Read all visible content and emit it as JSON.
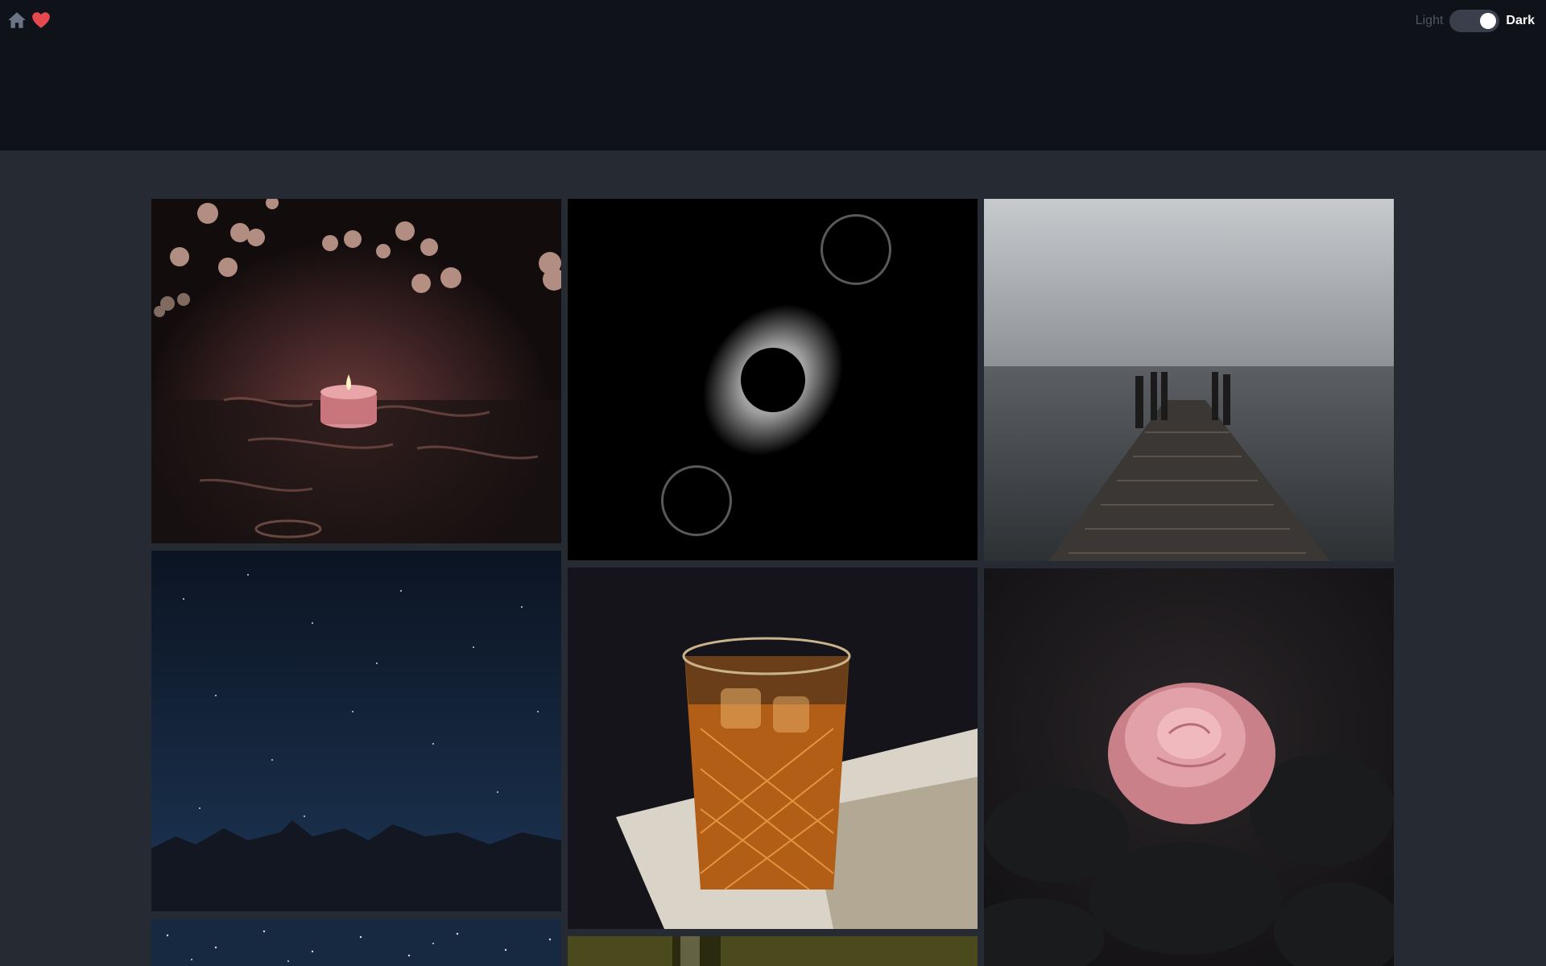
{
  "nav": {
    "home_icon": "home-icon",
    "favorites_icon": "heart-icon",
    "favorites_color": "#e5484d"
  },
  "theme": {
    "light_label": "Light",
    "dark_label": "Dark",
    "dark_active": true
  },
  "gallery": {
    "photos": [
      {
        "subject": "candle-bokeh"
      },
      {
        "subject": "eclipse-sequence"
      },
      {
        "subject": "foggy-pier"
      },
      {
        "subject": "starry-mountains"
      },
      {
        "subject": "whiskey-glass"
      },
      {
        "subject": "pink-rose"
      },
      {
        "subject": "starry-sky-partial"
      },
      {
        "subject": "green-bottle-partial"
      }
    ]
  },
  "colors": {
    "header_bg": "#0f1219",
    "page_bg": "#262a33",
    "icon_gray": "#6b7385"
  }
}
